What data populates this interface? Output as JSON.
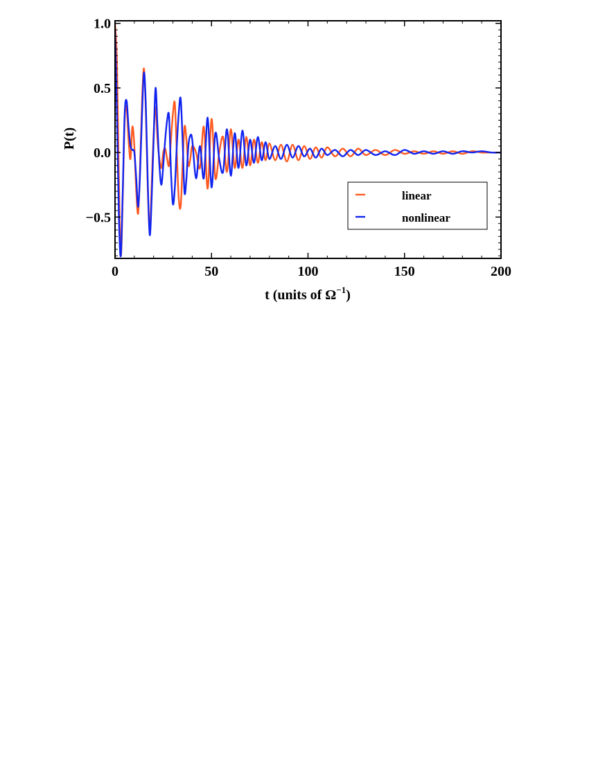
{
  "chart_data": {
    "type": "line",
    "title": "",
    "xlabel": "t (units of Ω",
    "xlabel_sup": "−1",
    "xlabel_close": ")",
    "ylabel": "P(t)",
    "xlim": [
      0,
      200
    ],
    "ylim": [
      -0.82,
      1.02
    ],
    "x_ticks": [
      0,
      50,
      100,
      150,
      200
    ],
    "x_tick_labels": [
      "0",
      "50",
      "100",
      "150",
      "200"
    ],
    "y_ticks": [
      1.0,
      0.5,
      0.0,
      -0.5
    ],
    "y_tick_labels": [
      "1.0",
      "0.5",
      "0.0",
      "−0.5"
    ],
    "grid": false,
    "legend_position": "right",
    "series": [
      {
        "name": "linear",
        "color": "#FF5A1F",
        "x": [
          0,
          1,
          2,
          3,
          4,
          5,
          6,
          7,
          8,
          9,
          10,
          11,
          12,
          13,
          14,
          15,
          16,
          17,
          18,
          19,
          20,
          21,
          22,
          23,
          24,
          25,
          26,
          27,
          28,
          29,
          30,
          31,
          32,
          33,
          34,
          35,
          36,
          37,
          38,
          39,
          40,
          42,
          44,
          46,
          48,
          50,
          52,
          54,
          56,
          58,
          60,
          62,
          64,
          66,
          68,
          70,
          72,
          74,
          76,
          78,
          80,
          83,
          86,
          89,
          92,
          95,
          98,
          101,
          104,
          107,
          110,
          114,
          118,
          122,
          126,
          130,
          135,
          140,
          145,
          150,
          155,
          160,
          165,
          170,
          175,
          180,
          185,
          190,
          195,
          200
        ],
        "y": [
          1.0,
          0.7,
          -0.2,
          -0.8,
          -0.35,
          0.25,
          0.35,
          0.1,
          -0.05,
          0.2,
          0.05,
          -0.3,
          -0.47,
          -0.1,
          0.4,
          0.65,
          0.3,
          -0.3,
          -0.6,
          -0.25,
          0.15,
          0.35,
          0.1,
          -0.05,
          -0.12,
          0.0,
          0.03,
          -0.05,
          -0.1,
          0.1,
          0.3,
          0.38,
          0.0,
          -0.35,
          -0.42,
          -0.1,
          0.2,
          0.1,
          -0.1,
          -0.05,
          0.05,
          0.0,
          -0.12,
          0.2,
          -0.28,
          0.26,
          -0.2,
          0.0,
          0.12,
          -0.15,
          0.18,
          -0.12,
          0.1,
          -0.12,
          0.12,
          -0.1,
          0.1,
          -0.08,
          0.08,
          -0.06,
          0.07,
          -0.06,
          0.06,
          -0.07,
          0.06,
          -0.06,
          0.05,
          -0.05,
          0.04,
          -0.04,
          0.04,
          -0.03,
          0.03,
          -0.03,
          0.03,
          -0.02,
          0.02,
          -0.02,
          0.02,
          -0.01,
          0.01,
          -0.01,
          0.01,
          -0.01,
          0.01,
          -0.01,
          0.01,
          0.0,
          0.0,
          0.0
        ]
      },
      {
        "name": "nonlinear",
        "color": "#1024F0",
        "x": [
          0,
          1,
          2,
          3,
          4,
          5,
          6,
          7,
          8,
          9,
          10,
          11,
          12,
          13,
          14,
          15,
          16,
          17,
          18,
          19,
          20,
          21,
          22,
          23,
          24,
          25,
          26,
          27,
          28,
          29,
          30,
          31,
          32,
          33,
          34,
          35,
          36,
          37,
          38,
          39,
          40,
          42,
          44,
          46,
          48,
          50,
          52,
          54,
          56,
          58,
          60,
          62,
          64,
          66,
          68,
          70,
          72,
          74,
          76,
          78,
          80,
          83,
          86,
          89,
          92,
          95,
          98,
          101,
          104,
          107,
          110,
          114,
          118,
          122,
          126,
          130,
          135,
          140,
          145,
          150,
          155,
          160,
          165,
          170,
          175,
          180,
          185,
          190,
          195,
          200
        ],
        "y": [
          0.95,
          0.3,
          -0.5,
          -0.8,
          -0.3,
          0.3,
          0.4,
          0.2,
          0.05,
          0.02,
          0.0,
          -0.2,
          -0.42,
          -0.15,
          0.3,
          0.62,
          0.35,
          -0.25,
          -0.64,
          -0.35,
          0.1,
          0.5,
          0.2,
          -0.1,
          -0.25,
          -0.1,
          0.1,
          0.25,
          0.28,
          -0.15,
          -0.4,
          -0.27,
          0.05,
          0.3,
          0.42,
          0.1,
          -0.31,
          -0.2,
          0.05,
          0.13,
          0.1,
          -0.2,
          0.05,
          -0.2,
          0.27,
          -0.27,
          0.15,
          -0.05,
          -0.15,
          0.18,
          -0.18,
          0.15,
          -0.12,
          0.17,
          -0.1,
          0.1,
          -0.08,
          0.12,
          -0.06,
          0.08,
          -0.05,
          0.05,
          -0.05,
          0.06,
          -0.04,
          0.05,
          -0.03,
          0.03,
          -0.04,
          0.03,
          -0.02,
          0.02,
          -0.03,
          0.02,
          -0.02,
          0.02,
          -0.02,
          0.01,
          -0.02,
          0.02,
          -0.01,
          0.01,
          -0.01,
          0.01,
          -0.01,
          0.01,
          0.0,
          0.01,
          0.0,
          0.0
        ]
      }
    ]
  }
}
